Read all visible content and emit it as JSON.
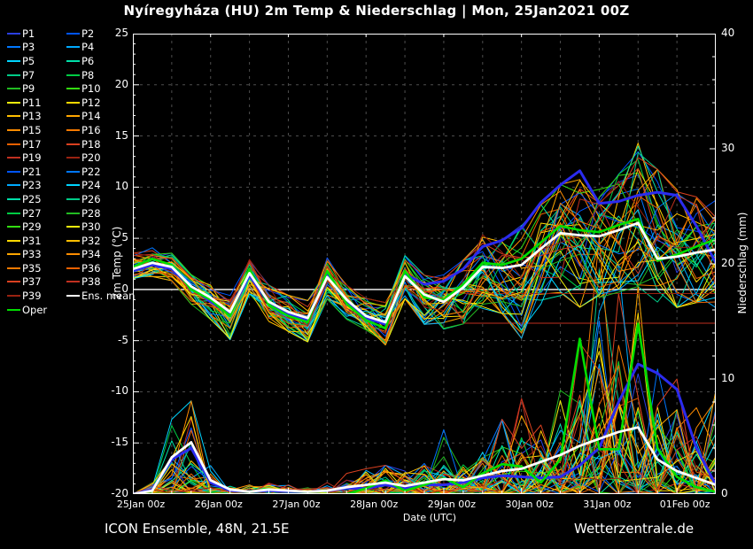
{
  "title": "Nyíregyháza  (HU)  2m Temp & Niederschlag | Mon, 25Jan2021 00Z",
  "footer": {
    "left": "ICON Ensemble, 48N, 21.5E",
    "right": "Wetterzentrale.de"
  },
  "legend": {
    "member_labels": [
      "P1",
      "P2",
      "P3",
      "P4",
      "P5",
      "P6",
      "P7",
      "P8",
      "P9",
      "P10",
      "P11",
      "P12",
      "P13",
      "P14",
      "P15",
      "P16",
      "P17",
      "P18",
      "P19",
      "P20",
      "P21",
      "P22",
      "P23",
      "P24",
      "P25",
      "P26",
      "P27",
      "P28",
      "P29",
      "P30",
      "P31",
      "P32",
      "P33",
      "P34",
      "P35",
      "P36",
      "P37",
      "P38",
      "P39"
    ],
    "member_colors": [
      "#2a3fe0",
      "#0055ff",
      "#0077ff",
      "#00aaff",
      "#00d5ff",
      "#00e0aa",
      "#00cc88",
      "#00cc44",
      "#22bb22",
      "#33dd11",
      "#f2f20d",
      "#ffd900",
      "#ffbf00",
      "#ffa600",
      "#ff8c00",
      "#f57900",
      "#e86000",
      "#d94020",
      "#c03020",
      "#992211",
      "#0055ff",
      "#0077ff",
      "#00aaff",
      "#00d5ff",
      "#00e0aa",
      "#00cc88",
      "#00cc44",
      "#22bb22",
      "#33dd11",
      "#f2f20d",
      "#ffd900",
      "#ffbf00",
      "#ffa600",
      "#ff8c00",
      "#f57900",
      "#e86000",
      "#d94020",
      "#c03020",
      "#992211"
    ],
    "mean_label": "Ens. mean",
    "mean_color": "#ffffff",
    "oper_label": "Oper",
    "oper_color": "#00dd00",
    "control_color": "#2b2bee"
  },
  "chart_data": {
    "type": "line",
    "title": "Nyíregyháza (HU) 2m Temp & Niederschlag, ICON Ensemble run Mon 25Jan2021 00Z",
    "x_hours": [
      0,
      6,
      12,
      18,
      24,
      30,
      36,
      42,
      48,
      54,
      60,
      66,
      72,
      78,
      84,
      90,
      96,
      102,
      108,
      114,
      120,
      126,
      132,
      138,
      144,
      150,
      156,
      162,
      168,
      174,
      180
    ],
    "x_axis": {
      "label": "Date (UTC)",
      "tick_labels": [
        "25Jan 00z",
        "26Jan 00z",
        "27Jan 00z",
        "28Jan 00z",
        "29Jan 00z",
        "30Jan 00z",
        "31Jan 00z",
        "01Feb 00z"
      ],
      "tick_hours": [
        0,
        24,
        48,
        72,
        96,
        120,
        144,
        168
      ],
      "grid_step_hours": 12,
      "range_hours": [
        0,
        180
      ]
    },
    "y_left": {
      "label": "2m Temp (°C)",
      "min": -20,
      "max": 25,
      "ticks": [
        25,
        20,
        15,
        10,
        5,
        0,
        -5,
        -10,
        -15,
        -20
      ],
      "zero_line": 0
    },
    "y_right": {
      "label": "Niederschlag (mm)",
      "min": 0,
      "max": 40,
      "ticks": [
        40,
        30,
        20,
        10,
        0
      ]
    },
    "series": {
      "ens_mean_temp": [
        2.0,
        2.6,
        2.2,
        0.3,
        -0.8,
        -2.2,
        1.6,
        -1.2,
        -2.2,
        -2.8,
        1.2,
        -1.0,
        -2.6,
        -3.2,
        1.3,
        -0.5,
        -1.2,
        0.2,
        2.2,
        2.1,
        2.4,
        4.0,
        5.5,
        5.3,
        5.2,
        5.8,
        6.5,
        3.0,
        3.2,
        3.6,
        3.9
      ],
      "oper_temp": [
        2.2,
        3.0,
        2.4,
        0.0,
        -1.0,
        -2.6,
        2.0,
        -1.5,
        -2.6,
        -3.2,
        1.8,
        -1.4,
        -3.0,
        -3.8,
        1.8,
        -0.8,
        -1.0,
        0.5,
        2.6,
        2.4,
        3.0,
        4.6,
        6.2,
        5.8,
        5.6,
        6.3,
        6.9,
        2.8,
        3.4,
        4.2,
        4.9
      ],
      "control_temp": [
        1.8,
        2.4,
        2.0,
        0.2,
        -1.2,
        -2.4,
        1.4,
        -1.4,
        -2.4,
        -3.0,
        1.6,
        -1.2,
        -2.8,
        -3.4,
        1.5,
        0.5,
        0.8,
        2.0,
        4.2,
        4.8,
        6.0,
        8.5,
        10.2,
        11.6,
        8.4,
        8.6,
        9.2,
        9.5,
        9.2,
        6.2,
        2.6
      ],
      "ens_mean_precip": [
        0,
        0.3,
        3.2,
        4.5,
        1.2,
        0.4,
        0.2,
        0.4,
        0.3,
        0.2,
        0.3,
        0.6,
        0.8,
        1.0,
        0.7,
        1.0,
        1.3,
        1.2,
        1.6,
        2.0,
        2.2,
        2.8,
        3.4,
        4.2,
        4.8,
        5.4,
        5.8,
        3.0,
        2.0,
        1.4,
        0.8
      ],
      "oper_precip": [
        0,
        0,
        0,
        0,
        0,
        0,
        0,
        0,
        0,
        0,
        0,
        0,
        0.5,
        1.2,
        0.3,
        0.8,
        1.4,
        0.6,
        1.8,
        2.6,
        2.4,
        1.0,
        3.0,
        13.5,
        3.9,
        3.9,
        14.8,
        4.0,
        1.5,
        0.6,
        0.2
      ],
      "control_precip": [
        0,
        0.4,
        3.0,
        4.0,
        1.0,
        0.3,
        0.2,
        0.3,
        0.2,
        0.2,
        0.3,
        0.5,
        0.5,
        0.8,
        0.5,
        0.8,
        0.8,
        1.0,
        1.4,
        1.6,
        1.5,
        1.4,
        1.5,
        2.5,
        4.0,
        8.0,
        11.3,
        10.5,
        9.1,
        4.0,
        0.8
      ],
      "member_temp_min": [
        1.0,
        1.2,
        0.8,
        -1.5,
        -3.0,
        -5.0,
        -0.5,
        -3.2,
        -4.2,
        -5.2,
        -1.0,
        -3.0,
        -4.5,
        -5.5,
        -1.0,
        -3.5,
        -4.0,
        -3.5,
        -2.0,
        -2.5,
        -5.0,
        -2.0,
        -1.5,
        -2.0,
        -1.0,
        -0.5,
        0.0,
        -1.5,
        -2.0,
        -1.5,
        -2.0
      ],
      "member_temp_max": [
        3.6,
        4.2,
        3.6,
        1.5,
        0.5,
        -0.5,
        3.0,
        0.5,
        -0.5,
        -1.0,
        3.2,
        0.5,
        -0.8,
        -1.2,
        3.4,
        1.5,
        2.0,
        3.0,
        5.5,
        5.0,
        6.5,
        8.5,
        10.5,
        11.0,
        10.0,
        11.5,
        14.3,
        12.0,
        10.0,
        9.5,
        9.0
      ],
      "member_precip_max": [
        0,
        1.0,
        6.5,
        8.2,
        2.5,
        1.0,
        0.8,
        1.2,
        0.8,
        0.8,
        1.0,
        1.8,
        2.2,
        2.5,
        2.0,
        3.5,
        5.6,
        4.0,
        5.0,
        6.5,
        8.3,
        7.0,
        9.0,
        16.0,
        22.5,
        20.0,
        18.0,
        12.0,
        10.0,
        8.0,
        9.0
      ]
    },
    "accents": {
      "temp_points": [
        {
          "member": 12,
          "points": [
            [
              150,
              9.0
            ],
            [
              156,
              14.3
            ],
            [
              162,
              8.0
            ]
          ]
        }
      ],
      "temp_flat": [
        {
          "member": 19,
          "from_hour": 96,
          "value": -0.4
        },
        {
          "member": 18,
          "from_hour": 102,
          "value": -3.3
        }
      ],
      "precip_points": [
        {
          "member": 4,
          "points": [
            [
              12,
              6.5
            ],
            [
              18,
              8.1
            ],
            [
              24,
              2.0
            ]
          ]
        },
        {
          "member": 15,
          "points": [
            [
              144,
              22.3
            ]
          ]
        },
        {
          "member": 6,
          "points": [
            [
              144,
              19.5
            ],
            [
              150,
              8.0
            ]
          ]
        },
        {
          "member": 17,
          "points": [
            [
              120,
              8.3
            ]
          ]
        }
      ]
    }
  }
}
